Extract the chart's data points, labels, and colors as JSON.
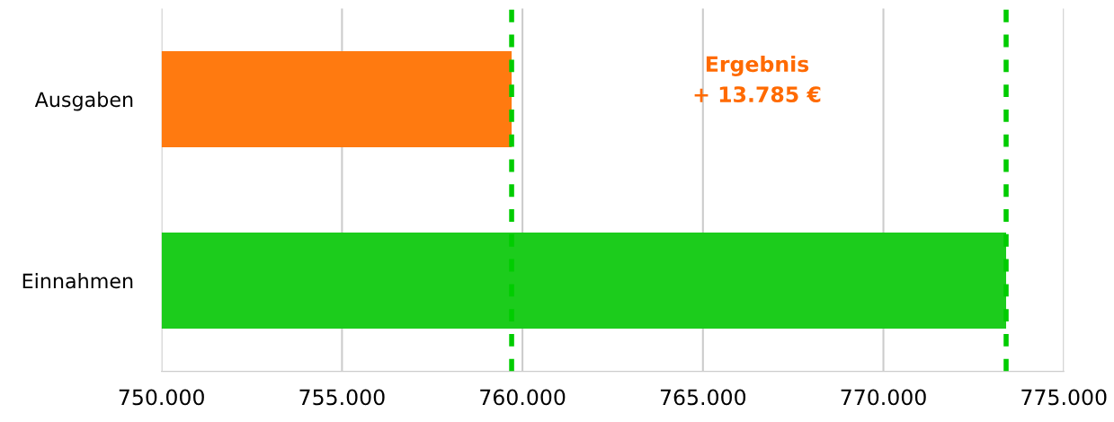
{
  "chart_data": {
    "type": "bar",
    "orientation": "horizontal",
    "categories": [
      "Ausgaben",
      "Einnahmen"
    ],
    "values": [
      759700,
      773400
    ],
    "colors": [
      "#ff7a10",
      "#1ccc1c"
    ],
    "xlim": [
      750000,
      775000
    ],
    "xticks": [
      {
        "value": 750000,
        "label": "750.000"
      },
      {
        "value": 755000,
        "label": "755.000"
      },
      {
        "value": 760000,
        "label": "760.000"
      },
      {
        "value": 765000,
        "label": "765.000"
      },
      {
        "value": 770000,
        "label": "770.000"
      },
      {
        "value": 775000,
        "label": "775.000"
      }
    ],
    "grid": "x",
    "ref_lines": [
      {
        "axis": "x",
        "value": 759700,
        "color": "#00cc00",
        "line_style": "dashed"
      },
      {
        "axis": "x",
        "value": 773400,
        "color": "#00cc00",
        "line_style": "dashed"
      }
    ],
    "annotations": [
      "Ergebnis\n+ 13.785 €"
    ]
  }
}
